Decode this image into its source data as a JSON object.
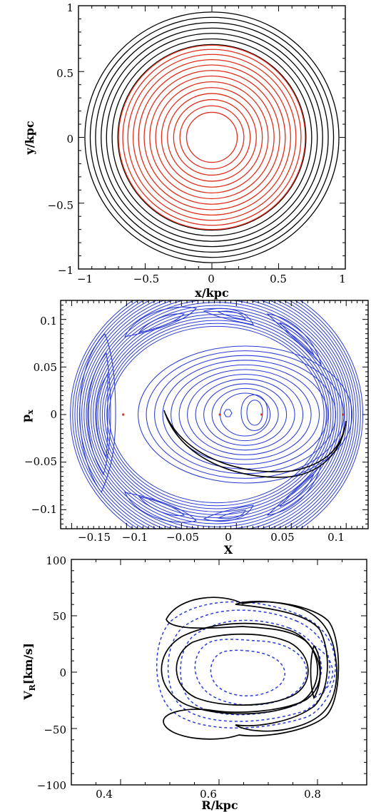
{
  "chart_data": [
    {
      "type": "line",
      "title": "",
      "xlabel": "x/kpc",
      "ylabel": "y/kpc",
      "xlim": [
        -1,
        1
      ],
      "ylim": [
        -1,
        1
      ],
      "xticks": [
        -1,
        -0.5,
        0,
        0.5,
        1
      ],
      "xtick_labels": [
        "−1",
        "−0.5",
        "0",
        "0.5",
        "1"
      ],
      "yticks": [
        -1,
        -0.5,
        0,
        0.5,
        1
      ],
      "ytick_labels": [
        "−1",
        "−0.5",
        "0",
        "0.5",
        "1"
      ],
      "grid": false,
      "colors": {
        "outer": "#000000",
        "inner": "#e0301e"
      },
      "series": [
        {
          "color": "#000000",
          "values": [
            0.705,
            0.748,
            0.79,
            0.83,
            0.872,
            0.912,
            0.952
          ]
        },
        {
          "color": "#e0301e",
          "values": [
            0.19,
            0.24,
            0.287,
            0.333,
            0.378,
            0.422,
            0.466,
            0.508,
            0.55,
            0.59,
            0.63,
            0.668,
            0.7
          ]
        }
      ]
    },
    {
      "type": "line",
      "title": "",
      "xlabel": "X",
      "ylabel": "pₓ",
      "ylabel_main": "p",
      "ylabel_sub": "x",
      "xlim": [
        -0.16,
        0.12
      ],
      "ylim": [
        -0.12,
        0.12
      ],
      "xticks": [
        -0.15,
        -0.1,
        -0.05,
        0,
        0.05,
        0.1
      ],
      "xtick_labels": [
        "−0.15",
        "−0.1",
        "−0.05",
        "0",
        "0.05",
        "0.1"
      ],
      "yticks": [
        -0.1,
        -0.05,
        0,
        0.05,
        0.1
      ],
      "ytick_labels": [
        "−0.1",
        "−0.05",
        "0",
        "0.05",
        "0.1"
      ],
      "grid": false,
      "colors": {
        "contours": "#2b3bd6",
        "points": "#e0301e",
        "orbit": "#000000"
      },
      "fixed_points": [
        {
          "x": -0.103,
          "y": 0
        },
        {
          "x": -0.015,
          "y": 0
        },
        {
          "x": 0.023,
          "y": 0
        },
        {
          "x": 0.097,
          "y": 0
        }
      ]
    },
    {
      "type": "line",
      "title": "",
      "xlabel": "R/kpc",
      "ylabel": "Vᵣ[km/s]",
      "ylabel_main": "V",
      "ylabel_sub": "R",
      "ylabel_rest": "[km/s]",
      "xlim": [
        0.3,
        0.9
      ],
      "ylim": [
        -100,
        100
      ],
      "xticks": [
        0.4,
        0.6,
        0.8
      ],
      "xtick_labels": [
        "0.4",
        "0.6",
        "0.8"
      ],
      "yticks": [
        -100,
        -50,
        0,
        50,
        100
      ],
      "ytick_labels": [
        "−100",
        "−50",
        "0",
        "50",
        "100"
      ],
      "grid": false,
      "colors": {
        "solid": "#000000",
        "dotted": "#2b3bd6"
      }
    }
  ]
}
